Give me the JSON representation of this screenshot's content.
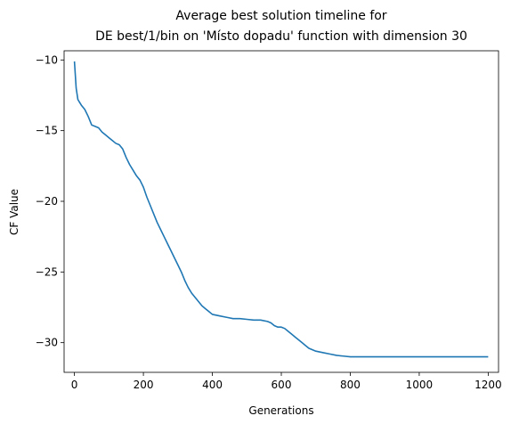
{
  "chart_data": {
    "type": "line",
    "title_line1": "Average best solution timeline for",
    "title_line2": "DE best/1/bin on 'Místo dopadu' function with dimension 30",
    "xlabel": "Generations",
    "ylabel": "CF Value",
    "xlim": [
      -30,
      1230
    ],
    "ylim": [
      -32.1,
      -9.35
    ],
    "xticks": [
      0,
      200,
      400,
      600,
      800,
      1000,
      1200
    ],
    "xtick_labels": [
      "0",
      "200",
      "400",
      "600",
      "800",
      "1000",
      "1200"
    ],
    "yticks": [
      -10,
      -15,
      -20,
      -25,
      -30
    ],
    "ytick_labels": [
      "−10",
      "−15",
      "−20",
      "−25",
      "−30"
    ],
    "grid": false,
    "line_color": "#1f77b4",
    "series": [
      {
        "x": [
          0,
          5,
          10,
          15,
          20,
          30,
          40,
          50,
          60,
          70,
          80,
          90,
          100,
          110,
          120,
          130,
          140,
          150,
          160,
          170,
          180,
          190,
          200,
          210,
          220,
          230,
          240,
          250,
          260,
          270,
          280,
          290,
          300,
          310,
          320,
          330,
          340,
          350,
          360,
          370,
          380,
          390,
          400,
          420,
          440,
          460,
          480,
          500,
          520,
          540,
          560,
          570,
          580,
          590,
          600,
          610,
          620,
          630,
          640,
          650,
          660,
          670,
          680,
          690,
          700,
          720,
          740,
          760,
          780,
          800,
          850,
          900,
          950,
          1000,
          1050,
          1100,
          1150,
          1200
        ],
        "y": [
          -10.1,
          -12.0,
          -12.8,
          -13.0,
          -13.2,
          -13.5,
          -14.0,
          -14.6,
          -14.7,
          -14.8,
          -15.1,
          -15.3,
          -15.5,
          -15.7,
          -15.9,
          -16.0,
          -16.3,
          -16.9,
          -17.4,
          -17.8,
          -18.2,
          -18.5,
          -19.0,
          -19.7,
          -20.3,
          -20.9,
          -21.5,
          -22.0,
          -22.5,
          -23.0,
          -23.5,
          -24.0,
          -24.5,
          -25.0,
          -25.6,
          -26.1,
          -26.5,
          -26.8,
          -27.1,
          -27.4,
          -27.6,
          -27.8,
          -28.0,
          -28.1,
          -28.2,
          -28.3,
          -28.3,
          -28.35,
          -28.4,
          -28.4,
          -28.5,
          -28.6,
          -28.8,
          -28.9,
          -28.9,
          -29.0,
          -29.2,
          -29.4,
          -29.6,
          -29.8,
          -30.0,
          -30.2,
          -30.4,
          -30.5,
          -30.6,
          -30.7,
          -30.8,
          -30.9,
          -30.95,
          -31.0,
          -31.0,
          -31.0,
          -31.0,
          -31.0,
          -31.0,
          -31.0,
          -31.0,
          -31.0
        ]
      }
    ]
  }
}
